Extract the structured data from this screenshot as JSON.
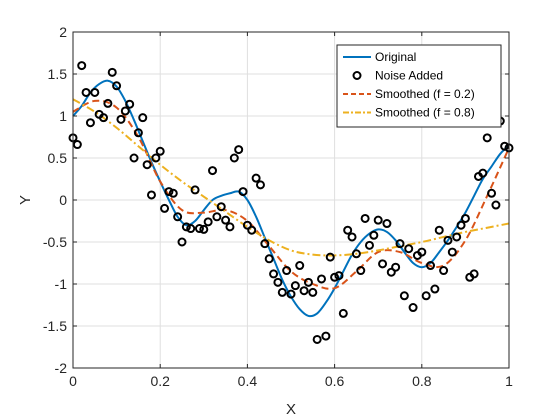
{
  "chart_data": {
    "type": "line",
    "title": "",
    "xlabel": "X",
    "ylabel": "Y",
    "xlim": [
      0,
      1
    ],
    "ylim": [
      -2,
      2
    ],
    "xticks": [
      0,
      0.2,
      0.4,
      0.6,
      0.8,
      1
    ],
    "xtick_labels": [
      "0",
      "0.2",
      "0.4",
      "0.6",
      "0.8",
      "1"
    ],
    "yticks": [
      -2,
      -1.5,
      -1,
      -0.5,
      0,
      0.5,
      1,
      1.5,
      2
    ],
    "ytick_labels": [
      "-2",
      "-1.5",
      "-1",
      "-0.5",
      "0",
      "0.5",
      "1",
      "1.5",
      "2"
    ],
    "grid": true,
    "legend_position": "top-right",
    "series": [
      {
        "name": "Original",
        "style": "solid-line",
        "color": "#0072BD",
        "x": [
          0,
          0.02,
          0.04,
          0.06,
          0.08,
          0.1,
          0.12,
          0.14,
          0.16,
          0.18,
          0.2,
          0.22,
          0.24,
          0.26,
          0.28,
          0.3,
          0.32,
          0.34,
          0.36,
          0.38,
          0.4,
          0.42,
          0.44,
          0.46,
          0.48,
          0.5,
          0.52,
          0.54,
          0.56,
          0.58,
          0.6,
          0.62,
          0.64,
          0.66,
          0.68,
          0.7,
          0.72,
          0.74,
          0.76,
          0.78,
          0.8,
          0.82,
          0.84,
          0.86,
          0.88,
          0.9,
          0.92,
          0.94,
          0.96,
          0.98,
          1.0
        ],
        "y": [
          1.0,
          1.12,
          1.28,
          1.38,
          1.42,
          1.35,
          1.18,
          0.95,
          0.7,
          0.45,
          0.22,
          0.0,
          -0.2,
          -0.3,
          -0.25,
          -0.12,
          0.0,
          0.05,
          0.08,
          0.1,
          0.0,
          -0.2,
          -0.45,
          -0.7,
          -0.95,
          -1.15,
          -1.3,
          -1.38,
          -1.35,
          -1.22,
          -1.05,
          -0.85,
          -0.65,
          -0.5,
          -0.4,
          -0.35,
          -0.38,
          -0.48,
          -0.62,
          -0.75,
          -0.8,
          -0.75,
          -0.62,
          -0.48,
          -0.32,
          -0.15,
          0.05,
          0.25,
          0.4,
          0.55,
          0.65
        ]
      },
      {
        "name": "Noise Added",
        "style": "markers",
        "color": "#000000",
        "x": [
          0,
          0.01,
          0.02,
          0.03,
          0.04,
          0.05,
          0.06,
          0.07,
          0.08,
          0.09,
          0.1,
          0.11,
          0.12,
          0.13,
          0.14,
          0.15,
          0.16,
          0.17,
          0.18,
          0.19,
          0.2,
          0.21,
          0.22,
          0.23,
          0.24,
          0.25,
          0.26,
          0.27,
          0.28,
          0.29,
          0.3,
          0.31,
          0.32,
          0.33,
          0.34,
          0.35,
          0.36,
          0.37,
          0.38,
          0.39,
          0.4,
          0.41,
          0.42,
          0.43,
          0.44,
          0.45,
          0.46,
          0.47,
          0.48,
          0.49,
          0.5,
          0.51,
          0.52,
          0.53,
          0.54,
          0.55,
          0.56,
          0.57,
          0.58,
          0.59,
          0.6,
          0.61,
          0.62,
          0.63,
          0.64,
          0.65,
          0.66,
          0.67,
          0.68,
          0.69,
          0.7,
          0.71,
          0.72,
          0.73,
          0.74,
          0.75,
          0.76,
          0.77,
          0.78,
          0.79,
          0.8,
          0.81,
          0.82,
          0.83,
          0.84,
          0.85,
          0.86,
          0.87,
          0.88,
          0.89,
          0.9,
          0.91,
          0.92,
          0.93,
          0.94,
          0.95,
          0.96,
          0.97,
          0.98,
          0.99,
          1.0
        ],
        "y": [
          0.74,
          0.66,
          1.6,
          1.28,
          0.92,
          1.28,
          1.02,
          0.98,
          1.15,
          1.52,
          1.36,
          0.96,
          1.06,
          1.14,
          0.5,
          0.8,
          0.98,
          0.42,
          0.06,
          0.5,
          0.58,
          -0.1,
          0.1,
          0.08,
          -0.2,
          -0.5,
          -0.32,
          -0.34,
          0.12,
          -0.34,
          -0.35,
          -0.26,
          0.35,
          -0.2,
          -0.08,
          -0.24,
          -0.32,
          0.5,
          0.6,
          0.1,
          -0.3,
          -0.36,
          0.26,
          0.18,
          -0.52,
          -0.7,
          -0.88,
          -0.98,
          -1.1,
          -0.84,
          -1.12,
          -1.02,
          -0.78,
          -1.08,
          -0.98,
          -1.1,
          -1.66,
          -0.94,
          -1.62,
          -0.68,
          -0.92,
          -0.9,
          -1.35,
          -0.36,
          -0.44,
          -0.64,
          -0.84,
          -0.22,
          -0.54,
          -0.42,
          -0.24,
          -0.76,
          -0.28,
          -0.86,
          -0.8,
          -0.52,
          -1.14,
          -0.58,
          -1.28,
          -0.66,
          -0.62,
          -1.14,
          -0.78,
          -1.06,
          -0.36,
          -0.84,
          -0.48,
          -0.62,
          -0.44,
          -0.3,
          -0.22,
          -0.92,
          -0.88,
          0.28,
          0.32,
          0.74,
          0.08,
          -0.06,
          0.94,
          0.64,
          0.62
        ]
      },
      {
        "name": "Smoothed (f = 0.2)",
        "style": "dashed-line",
        "color": "#D95319",
        "x": [
          0,
          0.05,
          0.1,
          0.15,
          0.2,
          0.25,
          0.3,
          0.35,
          0.4,
          0.45,
          0.5,
          0.55,
          0.6,
          0.65,
          0.7,
          0.75,
          0.8,
          0.85,
          0.9,
          0.95,
          1.0
        ],
        "y": [
          1.05,
          1.18,
          1.1,
          0.75,
          0.22,
          -0.12,
          -0.15,
          -0.12,
          -0.25,
          -0.55,
          -0.85,
          -1.0,
          -1.05,
          -0.85,
          -0.62,
          -0.62,
          -0.75,
          -0.78,
          -0.48,
          0.05,
          0.62
        ]
      },
      {
        "name": "Smoothed (f = 0.8)",
        "style": "dash-dot-line",
        "color": "#EDB120",
        "x": [
          0,
          0.05,
          0.1,
          0.15,
          0.2,
          0.25,
          0.3,
          0.35,
          0.4,
          0.45,
          0.5,
          0.55,
          0.6,
          0.65,
          0.7,
          0.75,
          0.8,
          0.85,
          0.9,
          0.95,
          1.0
        ],
        "y": [
          1.2,
          1.05,
          0.86,
          0.64,
          0.42,
          0.22,
          0.04,
          -0.14,
          -0.32,
          -0.48,
          -0.6,
          -0.65,
          -0.66,
          -0.64,
          -0.6,
          -0.55,
          -0.5,
          -0.44,
          -0.38,
          -0.33,
          -0.28
        ]
      }
    ]
  }
}
